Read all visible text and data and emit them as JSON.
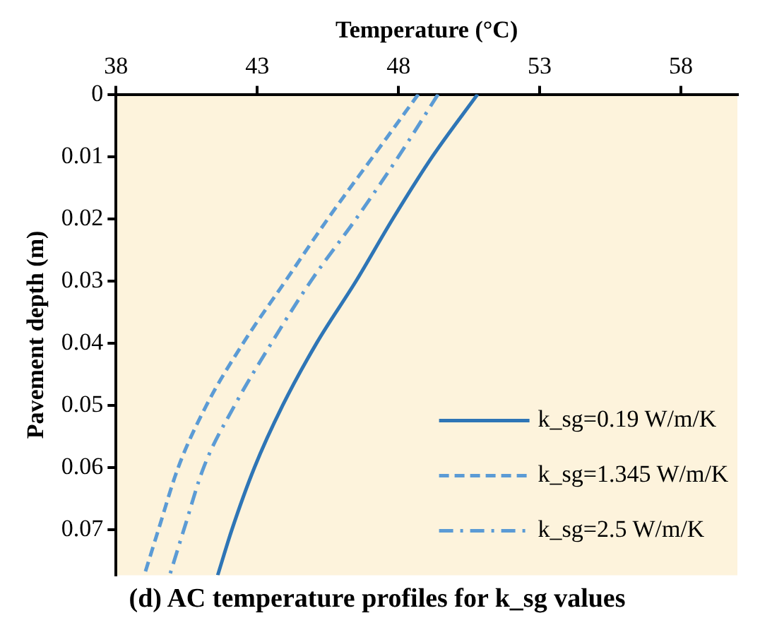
{
  "chart_data": {
    "type": "line",
    "title": "(d) AC temperature profiles for k_sg values",
    "xlabel": "Temperature (°C)",
    "ylabel": "Pavement depth (m)",
    "xlim": [
      38,
      60
    ],
    "xticks": [
      38,
      43,
      48,
      53,
      58
    ],
    "ylim": [
      0.0773,
      0
    ],
    "yticks": [
      0,
      0.01,
      0.02,
      0.03,
      0.04,
      0.05,
      0.06,
      0.07
    ],
    "grid": false,
    "legend": "bottom right",
    "marker": "none",
    "series": [
      {
        "name": "k_sg=0.19 W/m/K",
        "color": "#2e75b6",
        "line_style": "solid",
        "x": [
          50.8,
          49.2,
          47.8,
          46.5,
          45.1,
          43.9,
          42.9,
          42.1,
          41.6
        ],
        "values": [
          0,
          0.01,
          0.02,
          0.03,
          0.04,
          0.05,
          0.06,
          0.07,
          0.0773
        ]
      },
      {
        "name": "k_sg=1.345 W/m/K",
        "color": "#5b9bd5",
        "line_style": "dashed",
        "x": [
          48.7,
          47.1,
          45.5,
          44.0,
          42.5,
          41.2,
          40.2,
          39.5,
          39.0
        ],
        "values": [
          0,
          0.01,
          0.02,
          0.03,
          0.04,
          0.05,
          0.06,
          0.07,
          0.0773
        ]
      },
      {
        "name": "k_sg=2.5 W/m/K",
        "color": "#5b9bd5",
        "line_style": "dashdot",
        "x": [
          49.4,
          48.0,
          46.5,
          44.9,
          43.5,
          42.2,
          41.1,
          40.4,
          39.9
        ],
        "values": [
          0,
          0.01,
          0.02,
          0.03,
          0.04,
          0.05,
          0.06,
          0.07,
          0.0773
        ]
      }
    ]
  }
}
